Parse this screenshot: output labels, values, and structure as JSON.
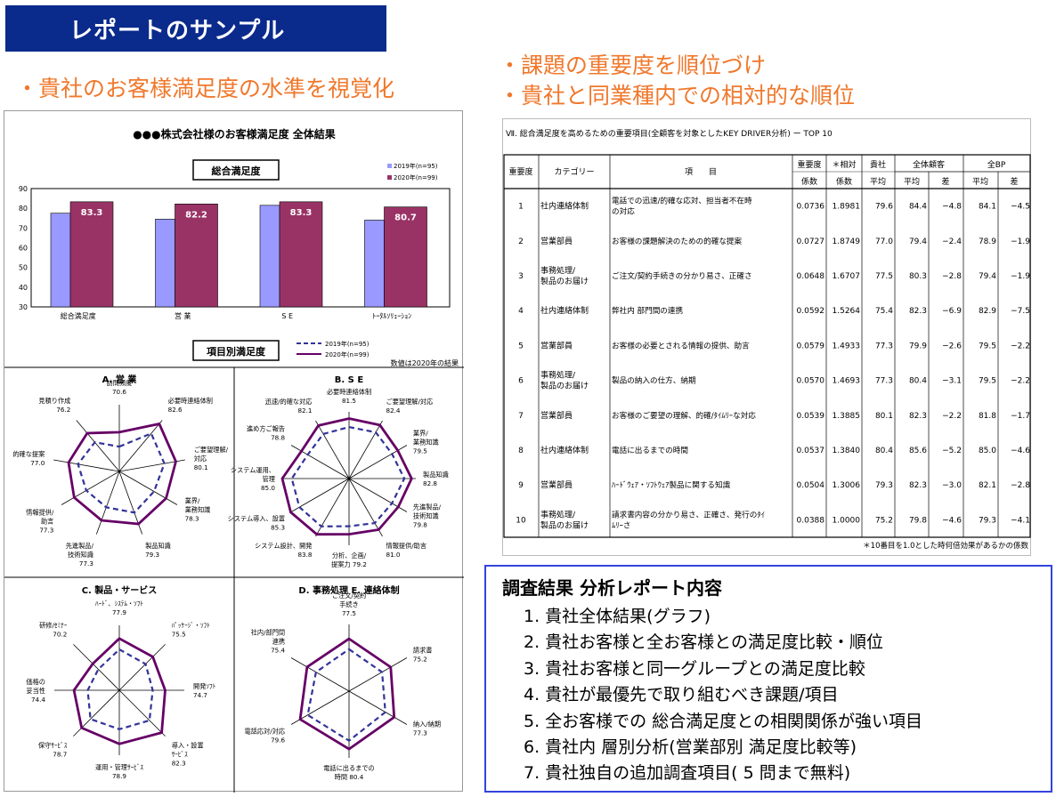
{
  "header": {
    "title": "レポートのサンプル",
    "left_bullet": "・貴社のお客様満足度の水準を視覚化",
    "right_bullets": [
      "・課題の重要度を順位づけ",
      "・貴社と同業種内での相対的な順位"
    ]
  },
  "colors": {
    "title_bg": "#0a2a8c",
    "orange": "#f0782c",
    "bar2019": "#9999ff",
    "bar2020": "#993366",
    "radar2020": "#660066",
    "radar2019": "#333399",
    "box_border": "#3344dd"
  },
  "chart_data": [
    {
      "type": "bar",
      "title": "●●●株式会社様のお客様満足度 全体結果",
      "subtitle": "総合満足度",
      "categories": [
        "総合満足度",
        "営 業",
        "S E",
        "ﾄｰﾀﾙｿﾘｭｰｼｮﾝ"
      ],
      "series": [
        {
          "name": "2019年(n=95)",
          "values": [
            77.5,
            74.5,
            81.5,
            74.0
          ]
        },
        {
          "name": "2020年(n=99)",
          "values": [
            83.3,
            82.2,
            83.3,
            80.7
          ]
        }
      ],
      "data_labels": [
        "83.3",
        "82.2",
        "83.3",
        "80.7"
      ],
      "ylim": [
        30,
        90
      ],
      "yticks": [
        "90",
        "80",
        "70",
        "60",
        "50",
        "40",
        "30"
      ],
      "legend": "top-right"
    },
    {
      "type": "radar",
      "title": "A. 営 業",
      "axes": [
        "訪問頻度",
        "必要時連絡体制",
        "ご要望理解/対応",
        "業界/業務知識",
        "製品知識",
        "先進製品/技術知識",
        "情報提供/助言",
        "的確な提案",
        "見積り作成"
      ],
      "labels": [
        "訪問頻度\n70.6",
        "必要時連絡体制\n82.6",
        "ご要望理解/\n対応\n80.1",
        "業界/\n業務知識\n78.3",
        "製品知識\n79.3",
        "先進製品/\n技術知識\n77.3",
        "情報提供/\n助言\n77.3",
        "的確な提案\n77.0",
        "見積り作成\n76.2"
      ],
      "series": [
        {
          "name": "2020年(n=99)",
          "values": [
            70.6,
            82.6,
            80.1,
            78.3,
            79.3,
            77.3,
            77.3,
            77.0,
            76.2
          ]
        },
        {
          "name": "2019年(n=95)",
          "values": [
            63,
            76,
            74,
            71,
            73,
            70,
            70,
            72,
            70
          ]
        }
      ],
      "range": [
        50,
        85
      ]
    },
    {
      "type": "radar",
      "title": "B. S E",
      "axes": [
        "必要時連絡体制",
        "ご要望理解/対応",
        "業界/業務知識",
        "製品知識",
        "先進製品/技術知識",
        "情報提供/助言",
        "分析、企画/提案力",
        "システム設計、開発",
        "システム導入、設置",
        "システム運用、管理",
        "進め方ご報告",
        "迅速/的確な対応"
      ],
      "labels": [
        "必要時連絡体制\n81.5",
        "ご要望理解/対応\n82.4",
        "業界/\n業務知識\n79.5",
        "製品知識\n82.8",
        "先進製品/\n技術知識\n79.8",
        "情報提供/助言\n81.0",
        "分析、企画/\n提案力  79.2",
        "システム設計、開発\n83.8",
        "システム導入、設置\n85.3",
        "システム運用、\n管理\n85.0",
        "進め方ご報告\n78.8",
        "迅速/的確な対応\n82.1"
      ],
      "series": [
        {
          "name": "2020年(n=99)",
          "values": [
            81.5,
            82.4,
            79.5,
            82.8,
            79.8,
            81.0,
            79.2,
            83.8,
            85.3,
            85.0,
            78.8,
            82.1
          ]
        },
        {
          "name": "2019年(n=95)",
          "values": [
            77,
            78,
            76,
            79,
            76,
            77,
            75,
            79,
            80,
            80,
            75,
            77
          ]
        }
      ],
      "range": [
        50,
        85
      ]
    },
    {
      "type": "radar",
      "title": "C. 製品・サービス",
      "axes": [
        "ﾊｰﾄﾞ、ｼｽﾃﾑ・ｿﾌﾄ",
        "ﾊﾟｯｹｰｼﾞ・ｿﾌﾄ",
        "開発ｿﾌﾄ",
        "導入・設置ｻｰﾋﾞｽ",
        "運用・管理ｻｰﾋﾞｽ",
        "保守ｻｰﾋﾞｽ",
        "価格の妥当性",
        "研修/ｾﾐﾅｰ"
      ],
      "labels": [
        "ﾊｰﾄﾞ、ｼｽﾃﾑ・ｿﾌﾄ\n77.9",
        "ﾊﾟｯｹｰｼﾞ・ｿﾌﾄ\n75.5",
        "開発ｿﾌﾄ\n74.7",
        "導入・設置\nｻｰﾋﾞｽ\n82.3",
        "運用・管理ｻｰﾋﾞｽ\n78.9",
        "保守ｻｰﾋﾞｽ\n78.7",
        "価格の\n妥当性\n74.4",
        "研修/ｾﾐﾅｰ\n70.2"
      ],
      "series": [
        {
          "name": "2020年(n=99)",
          "values": [
            77.9,
            75.5,
            74.7,
            82.3,
            78.9,
            78.7,
            74.4,
            70.2
          ]
        },
        {
          "name": "2019年(n=95)",
          "values": [
            72,
            70,
            68,
            73,
            71,
            72,
            67,
            66
          ]
        }
      ],
      "range": [
        50,
        85
      ]
    },
    {
      "type": "radar",
      "title": "D. 事務処理 E. 連絡体制",
      "axes": [
        "ご注文/契約手続き",
        "請求書",
        "納入/納期",
        "電話に出るまでの時間",
        "電話応対/対応",
        "社内/部門間連携"
      ],
      "labels": [
        "ご注文/契約\n手続き\n77.5",
        "請求書\n75.2",
        "納入/納期\n77.3",
        "電話に出るまでの\n時間   80.4",
        "電話応対/対応\n79.6",
        "社内/部門間\n連携\n75.4"
      ],
      "series": [
        {
          "name": "2020年(n=99)",
          "values": [
            77.5,
            75.2,
            77.3,
            80.4,
            79.6,
            75.4
          ]
        },
        {
          "name": "2019年(n=95)",
          "values": [
            72,
            70,
            72,
            76,
            75,
            70
          ]
        }
      ],
      "range": [
        50,
        85
      ]
    },
    {
      "type": "table",
      "title": "Ⅶ. 総合満足度を高めるための重要項目(全顧客を対象としたKEY DRIVER分析) ー TOP 10",
      "header_top": [
        "重要度",
        "カテゴリー",
        "項　　目",
        "重要度",
        "＊相対",
        "貴社",
        "全体顧客",
        "全BP"
      ],
      "header_sub": [
        "係数",
        "係数",
        "平均",
        "平均",
        "差",
        "平均",
        "差"
      ],
      "rows": [
        [
          "1",
          "社内連絡体制",
          "電話での迅速/的確な応対、担当者不在時\nの対応",
          "0.0736",
          "1.8981",
          "79.6",
          "84.4",
          "−4.8",
          "84.1",
          "−4.5"
        ],
        [
          "2",
          "営業部員",
          "お客様の課題解決のための的確な提案",
          "0.0727",
          "1.8749",
          "77.0",
          "79.4",
          "−2.4",
          "78.9",
          "−1.9"
        ],
        [
          "3",
          "事務処理/\n製品のお届け",
          "ご注文/契約手続きの分かり易さ、正確さ",
          "0.0648",
          "1.6707",
          "77.5",
          "80.3",
          "−2.8",
          "79.4",
          "−1.9"
        ],
        [
          "4",
          "社内連絡体制",
          "弊社内 部門間の連携",
          "0.0592",
          "1.5264",
          "75.4",
          "82.3",
          "−6.9",
          "82.9",
          "−7.5"
        ],
        [
          "5",
          "営業部員",
          "お客様の必要とされる情報の提供、助言",
          "0.0579",
          "1.4933",
          "77.3",
          "79.9",
          "−2.6",
          "79.5",
          "−2.2"
        ],
        [
          "6",
          "事務処理/\n製品のお届け",
          "製品の納入の仕方、納期",
          "0.0570",
          "1.4693",
          "77.3",
          "80.4",
          "−3.1",
          "79.5",
          "−2.2"
        ],
        [
          "7",
          "営業部員",
          "お客様のご要望の理解、的確/ﾀｲﾑﾘｰな対応",
          "0.0539",
          "1.3885",
          "80.1",
          "82.3",
          "−2.2",
          "81.8",
          "−1.7"
        ],
        [
          "8",
          "社内連絡体制",
          "電話に出るまでの時間",
          "0.0537",
          "1.3840",
          "80.4",
          "85.6",
          "−5.2",
          "85.0",
          "−4.6"
        ],
        [
          "9",
          "営業部員",
          "ﾊｰﾄﾞｳｪｱ・ｿﾌﾄｳｪｱ製品に関する知識",
          "0.0504",
          "1.3006",
          "79.3",
          "82.3",
          "−3.0",
          "82.1",
          "−2.8"
        ],
        [
          "10",
          "事務処理/\n製品のお届け",
          "請求書内容の分かり易さ、正確さ、発行のﾀｲ\nﾑﾘｰさ",
          "0.0388",
          "1.0000",
          "75.2",
          "79.8",
          "−4.6",
          "79.3",
          "−4.1"
        ]
      ],
      "footnote": "＊10番目を1.0とした時何倍効果があるかの係数"
    }
  ],
  "left_panel": {
    "section2_title": "項目別満足度",
    "legend2019": "2019年(n=95)",
    "legend2020": "2020年(n=99)",
    "note": "数値は2020年の結果"
  },
  "report": {
    "title": "調査結果 分析レポート内容",
    "items": [
      "1. 貴社全体結果(グラフ)",
      "2. 貴社お客様と全お客様との満足度比較・順位",
      "3. 貴社お客様と同一グループとの満足度比較",
      "4. 貴社が最優先で取り組むべき課題/項目",
      "5. 全お客様での 総合満足度との相関関係が強い項目",
      "6. 貴社内 層別分析(営業部別 満足度比較等)",
      "7. 貴社独自の追加調査項目( 5 問まで無料)"
    ]
  }
}
